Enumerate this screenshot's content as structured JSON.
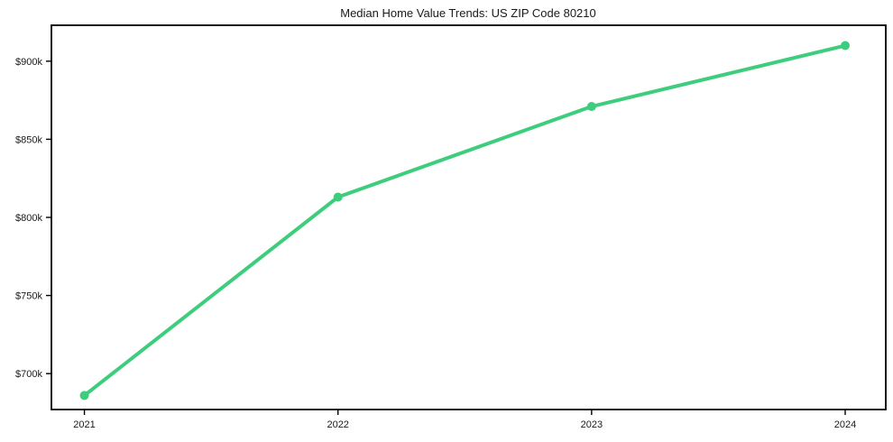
{
  "chart_data": {
    "type": "line",
    "title": "Median Home Value Trends: US ZIP Code 80210",
    "x": [
      2021,
      2022,
      2023,
      2024
    ],
    "x_tick_labels": [
      "2021",
      "2022",
      "2023",
      "2024"
    ],
    "series": [
      {
        "name": "median-home-value",
        "values": [
          686000,
          813000,
          871000,
          910000
        ],
        "color": "#3ecd7d",
        "line_width": 4,
        "marker": "circle",
        "marker_radius": 5
      }
    ],
    "y_ticks": [
      700000,
      750000,
      800000,
      850000,
      900000
    ],
    "y_tick_labels": [
      "$700k",
      "$750k",
      "$800k",
      "$850k",
      "$900k"
    ],
    "ylim": [
      677000,
      923000
    ],
    "xlim": [
      2020.87,
      2024.16
    ],
    "grid": false,
    "legend": "none",
    "background_color": "#ffffff",
    "axis_color": "#000000",
    "text_color": "#1a1a1a"
  }
}
